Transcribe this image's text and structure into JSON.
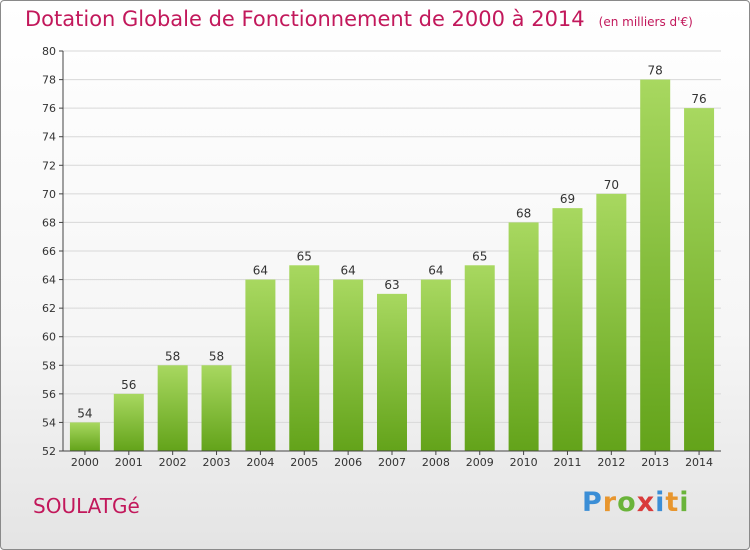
{
  "header": {
    "title": "Dotation Globale de Fonctionnement de 2000 à 2014",
    "unit": "(en milliers d'€)"
  },
  "commune": "SOULATGé",
  "logo": {
    "letters": [
      "P",
      "r",
      "o",
      "x",
      "i",
      "t",
      "i"
    ],
    "colors": [
      "#3b8ed6",
      "#e8962e",
      "#6ab43a",
      "#d93b3b",
      "#3b8ed6",
      "#e8962e",
      "#6ab43a"
    ]
  },
  "colors": {
    "bar_light": "#a8d860",
    "bar_dark": "#63a31a",
    "grid": "#d8d8d8",
    "axis": "#444444",
    "title": "#c2185b"
  },
  "chart_data": {
    "type": "bar",
    "categories": [
      "2000",
      "2001",
      "2002",
      "2003",
      "2004",
      "2005",
      "2006",
      "2007",
      "2008",
      "2009",
      "2010",
      "2011",
      "2012",
      "2013",
      "2014"
    ],
    "values": [
      54,
      56,
      58,
      58,
      64,
      65,
      64,
      63,
      64,
      65,
      68,
      69,
      70,
      78,
      76
    ],
    "title": "Dotation Globale de Fonctionnement de 2000 à 2014",
    "ylim": [
      52,
      80
    ],
    "yticks": [
      52,
      54,
      56,
      58,
      60,
      62,
      64,
      66,
      68,
      70,
      72,
      74,
      76,
      78,
      80
    ],
    "grid": true,
    "data_labels": true
  }
}
